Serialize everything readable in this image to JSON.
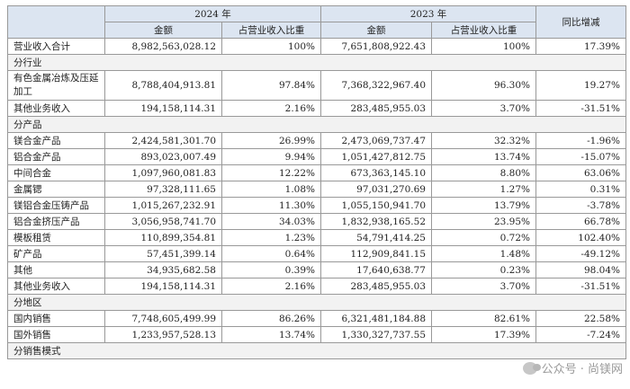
{
  "header": {
    "year_2024": "2024 年",
    "year_2023": "2023 年",
    "amount": "金额",
    "ratio": "占营业收入比重",
    "yoy": "同比增减"
  },
  "total": {
    "label": "营业收入合计",
    "a2024": "8,982,563,028.12",
    "r2024": "100%",
    "a2023": "7,651,808,922.43",
    "r2023": "100%",
    "yoy": "17.39%"
  },
  "by_industry": {
    "title": "分行业",
    "rows": [
      {
        "label": "有色金属冶炼及压延加工",
        "a2024": "8,788,404,913.81",
        "r2024": "97.84%",
        "a2023": "7,368,322,967.40",
        "r2023": "96.30%",
        "yoy": "19.27%"
      },
      {
        "label": "其他业务收入",
        "a2024": "194,158,114.31",
        "r2024": "2.16%",
        "a2023": "283,485,955.03",
        "r2023": "3.70%",
        "yoy": "-31.51%"
      }
    ]
  },
  "by_product": {
    "title": "分产品",
    "rows": [
      {
        "label": "镁合金产品",
        "a2024": "2,424,581,301.70",
        "r2024": "26.99%",
        "a2023": "2,473,069,737.47",
        "r2023": "32.32%",
        "yoy": "-1.96%"
      },
      {
        "label": "铝合金产品",
        "a2024": "893,023,007.49",
        "r2024": "9.94%",
        "a2023": "1,051,427,812.75",
        "r2023": "13.74%",
        "yoy": "-15.07%"
      },
      {
        "label": "中间合金",
        "a2024": "1,097,960,081.83",
        "r2024": "12.22%",
        "a2023": "673,363,145.10",
        "r2023": "8.80%",
        "yoy": "63.06%"
      },
      {
        "label": "金属锶",
        "a2024": "97,328,111.65",
        "r2024": "1.08%",
        "a2023": "97,031,270.69",
        "r2023": "1.27%",
        "yoy": "0.31%"
      },
      {
        "label": "镁铝合金压铸产品",
        "a2024": "1,015,267,232.91",
        "r2024": "11.30%",
        "a2023": "1,055,150,941.70",
        "r2023": "13.79%",
        "yoy": "-3.78%"
      },
      {
        "label": "铝合金挤压产品",
        "a2024": "3,056,958,741.70",
        "r2024": "34.03%",
        "a2023": "1,832,938,165.52",
        "r2023": "23.95%",
        "yoy": "66.78%"
      },
      {
        "label": "模板租赁",
        "a2024": "110,899,354.81",
        "r2024": "1.23%",
        "a2023": "54,791,414.25",
        "r2023": "0.72%",
        "yoy": "102.40%"
      },
      {
        "label": "矿产品",
        "a2024": "57,451,399.14",
        "r2024": "0.64%",
        "a2023": "112,909,841.15",
        "r2023": "1.48%",
        "yoy": "-49.12%"
      },
      {
        "label": "其他",
        "a2024": "34,935,682.58",
        "r2024": "0.39%",
        "a2023": "17,640,638.77",
        "r2023": "0.23%",
        "yoy": "98.04%"
      },
      {
        "label": "其他业务收入",
        "a2024": "194,158,114.31",
        "r2024": "2.16%",
        "a2023": "283,485,955.03",
        "r2023": "3.70%",
        "yoy": "-31.51%"
      }
    ]
  },
  "by_region": {
    "title": "分地区",
    "rows": [
      {
        "label": "国内销售",
        "a2024": "7,748,605,499.99",
        "r2024": "86.26%",
        "a2023": "6,321,481,184.88",
        "r2023": "82.61%",
        "yoy": "22.58%"
      },
      {
        "label": "国外销售",
        "a2024": "1,233,957,528.13",
        "r2024": "13.74%",
        "a2023": "1,330,327,737.55",
        "r2023": "17.39%",
        "yoy": "-7.24%"
      }
    ]
  },
  "by_sales_mode": {
    "title": "分销售模式"
  },
  "watermark": {
    "text": "公众号 · 尚镁网"
  }
}
